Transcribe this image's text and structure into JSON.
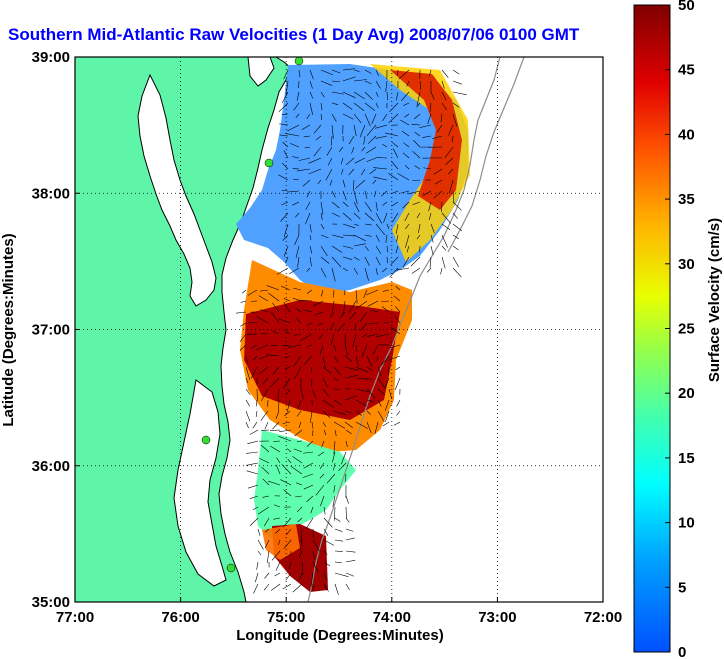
{
  "chart_data": {
    "type": "heatmap",
    "title": "Southern Mid-Atlantic Raw Velocities (1 Day Avg) 2008/07/06 0100 GMT",
    "xlabel": "Longitude (Degrees:Minutes)",
    "ylabel": "Latitude (Degrees:Minutes)",
    "x_ticks": [
      "77:00",
      "76:00",
      "75:00",
      "74:00",
      "73:00",
      "72:00"
    ],
    "y_ticks": [
      "39:00",
      "38:00",
      "37:00",
      "36:00",
      "35:00"
    ],
    "xlim": [
      -77,
      -72
    ],
    "ylim": [
      35,
      39
    ],
    "grid": true,
    "colorbar": {
      "label": "Surface Velocity (cm/s)",
      "min": 0,
      "max": 50,
      "ticks": [
        "50",
        "45",
        "40",
        "35",
        "30",
        "25",
        "20",
        "15",
        "10",
        "5",
        "0"
      ],
      "colormap": "jet"
    },
    "colors": {
      "land": "#5ef5a8",
      "coast": "#000000",
      "stations": "#33dd33",
      "isobath": "#8c8c8c"
    }
  }
}
